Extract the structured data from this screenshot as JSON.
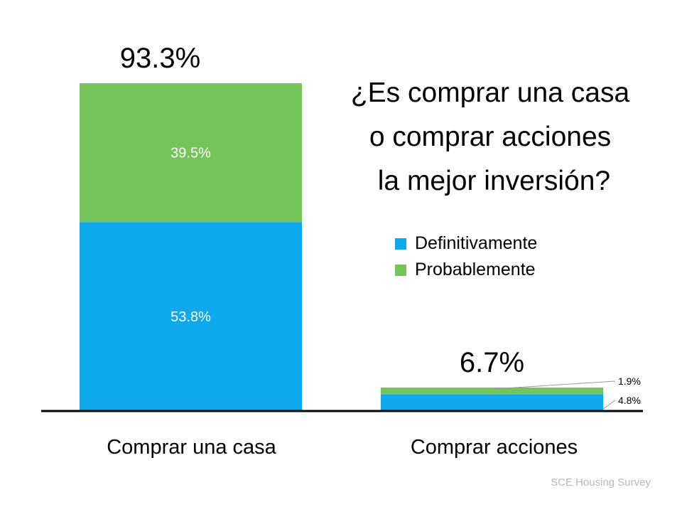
{
  "chart_data": {
    "type": "bar",
    "stacked": true,
    "title": [
      "¿Es comprar una casa",
      "o comprar acciones",
      " la mejor inversión?"
    ],
    "categories": [
      "Comprar una casa",
      "Comprar acciones"
    ],
    "series": [
      {
        "name": "Definitivamente",
        "values": [
          53.8,
          4.8
        ],
        "labels": [
          "53.8%",
          "4.8%"
        ],
        "color": "#0EA9EC"
      },
      {
        "name": "Probablemente",
        "values": [
          39.5,
          1.9
        ],
        "labels": [
          "39.5%",
          "1.9%"
        ],
        "color": "#74C45A"
      }
    ],
    "totals": [
      93.3,
      6.7
    ],
    "total_labels": [
      "93.3%",
      "6.7%"
    ],
    "ylim": [
      0,
      100
    ],
    "grid": false,
    "legend": "right",
    "xlabel": "",
    "ylabel": ""
  },
  "source": "SCE Housing Survey"
}
